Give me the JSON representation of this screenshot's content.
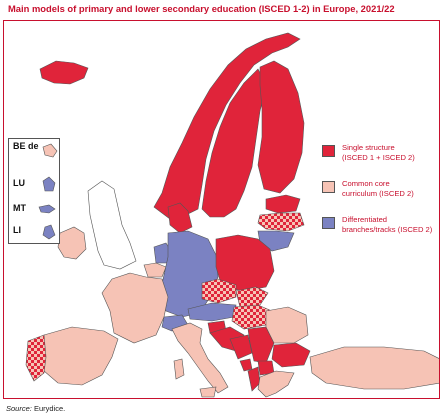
{
  "title": "Main models of primary and lower secondary education (ISCED 1-2) in Europe, 2021/22",
  "colors": {
    "single_structure": "#e0243a",
    "common_core": "#f6c3b5",
    "differentiated": "#7b82c2",
    "non_member": "#ffffff",
    "sea": "#ffffff",
    "border": "#555555",
    "accent": "#c8102e"
  },
  "legend": {
    "items": [
      {
        "key": "single_structure",
        "line1": "Single structure",
        "line2": "(ISCED 1 + ISCED 2)"
      },
      {
        "key": "common_core",
        "line1": "Common core",
        "line2": "curriculum (ISCED 2)"
      },
      {
        "key": "differentiated",
        "line1": "Differentiated",
        "line2": "branches/tracks (ISCED 2)"
      }
    ]
  },
  "insets": [
    {
      "label": "BE de",
      "category": "common_core"
    },
    {
      "label": "LU",
      "category": "differentiated"
    },
    {
      "label": "MT",
      "category": "differentiated"
    },
    {
      "label": "LI",
      "category": "differentiated"
    }
  ],
  "source": {
    "label": "Source:",
    "value": "Eurydice."
  }
}
